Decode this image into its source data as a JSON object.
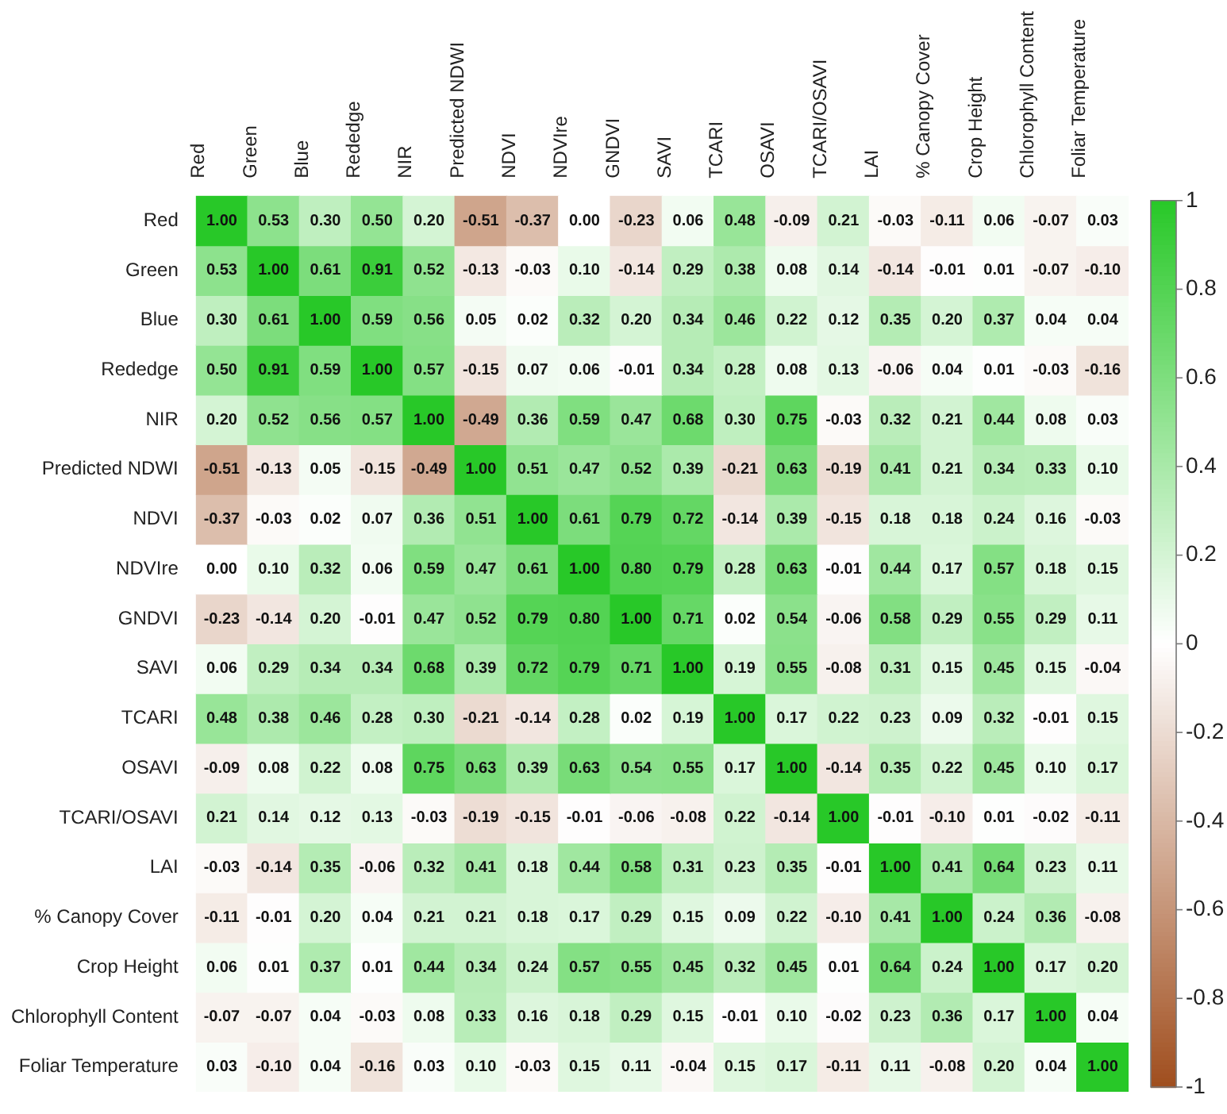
{
  "chart_data": {
    "type": "heatmap",
    "categories": [
      "Red",
      "Green",
      "Blue",
      "Rededge",
      "NIR",
      "Predicted NDWI",
      "NDVI",
      "NDVIre",
      "GNDVI",
      "SAVI",
      "TCARI",
      "OSAVI",
      "TCARI/OSAVI",
      "LAI",
      "% Canopy Cover",
      "Crop Height",
      "Chlorophyll Content",
      "Foliar Temperature"
    ],
    "y_categories": [
      "Red",
      "Green",
      "Blue",
      "Rededge",
      "NIR",
      "Predicted NDWI",
      "NDVI",
      "NDVIre",
      "GNDVI",
      "SAVI",
      "TCARI",
      "OSAVI",
      "TCARI/OSAVI",
      "LAI",
      "% Canopy Cover",
      "Crop Height",
      "Chlorophyll Content",
      "Foliar Temperature"
    ],
    "cells": [
      [
        1.0,
        0.53,
        0.3,
        0.5,
        0.2,
        -0.51,
        -0.37,
        0.0,
        -0.23,
        0.06,
        0.48,
        -0.09,
        0.21,
        -0.03,
        -0.11,
        0.06,
        -0.07,
        0.03
      ],
      [
        0.53,
        1.0,
        0.61,
        0.91,
        0.52,
        -0.13,
        -0.03,
        0.1,
        -0.14,
        0.29,
        0.38,
        0.08,
        0.14,
        -0.14,
        -0.01,
        0.01,
        -0.07,
        -0.1
      ],
      [
        0.3,
        0.61,
        1.0,
        0.59,
        0.56,
        0.05,
        0.02,
        0.32,
        0.2,
        0.34,
        0.46,
        0.22,
        0.12,
        0.35,
        0.2,
        0.37,
        0.04,
        0.04
      ],
      [
        0.5,
        0.91,
        0.59,
        1.0,
        0.57,
        -0.15,
        0.07,
        0.06,
        -0.01,
        0.34,
        0.28,
        0.08,
        0.13,
        -0.06,
        0.04,
        0.01,
        -0.03,
        -0.16
      ],
      [
        0.2,
        0.52,
        0.56,
        0.57,
        1.0,
        -0.49,
        0.36,
        0.59,
        0.47,
        0.68,
        0.3,
        0.75,
        -0.03,
        0.32,
        0.21,
        0.44,
        0.08,
        0.03
      ],
      [
        -0.51,
        -0.13,
        0.05,
        -0.15,
        -0.49,
        1.0,
        0.51,
        0.47,
        0.52,
        0.39,
        -0.21,
        0.63,
        -0.19,
        0.41,
        0.21,
        0.34,
        0.33,
        0.1
      ],
      [
        -0.37,
        -0.03,
        0.02,
        0.07,
        0.36,
        0.51,
        1.0,
        0.61,
        0.79,
        0.72,
        -0.14,
        0.39,
        -0.15,
        0.18,
        0.18,
        0.24,
        0.16,
        -0.03
      ],
      [
        0.0,
        0.1,
        0.32,
        0.06,
        0.59,
        0.47,
        0.61,
        1.0,
        0.8,
        0.79,
        0.28,
        0.63,
        -0.01,
        0.44,
        0.17,
        0.57,
        0.18,
        0.15
      ],
      [
        -0.23,
        -0.14,
        0.2,
        -0.01,
        0.47,
        0.52,
        0.79,
        0.8,
        1.0,
        0.71,
        0.02,
        0.54,
        -0.06,
        0.58,
        0.29,
        0.55,
        0.29,
        0.11
      ],
      [
        0.06,
        0.29,
        0.34,
        0.34,
        0.68,
        0.39,
        0.72,
        0.79,
        0.71,
        1.0,
        0.19,
        0.55,
        -0.08,
        0.31,
        0.15,
        0.45,
        0.15,
        -0.04
      ],
      [
        0.48,
        0.38,
        0.46,
        0.28,
        0.3,
        -0.21,
        -0.14,
        0.28,
        0.02,
        0.19,
        1.0,
        0.17,
        0.22,
        0.23,
        0.09,
        0.32,
        -0.01,
        0.15
      ],
      [
        -0.09,
        0.08,
        0.22,
        0.08,
        0.75,
        0.63,
        0.39,
        0.63,
        0.54,
        0.55,
        0.17,
        1.0,
        -0.14,
        0.35,
        0.22,
        0.45,
        0.1,
        0.17
      ],
      [
        0.21,
        0.14,
        0.12,
        0.13,
        -0.03,
        -0.19,
        -0.15,
        -0.01,
        -0.06,
        -0.08,
        0.22,
        -0.14,
        1.0,
        -0.01,
        -0.1,
        0.01,
        -0.02,
        -0.11
      ],
      [
        -0.03,
        -0.14,
        0.35,
        -0.06,
        0.32,
        0.41,
        0.18,
        0.44,
        0.58,
        0.31,
        0.23,
        0.35,
        -0.01,
        1.0,
        0.41,
        0.64,
        0.23,
        0.11
      ],
      [
        -0.11,
        -0.01,
        0.2,
        0.04,
        0.21,
        0.21,
        0.18,
        0.17,
        0.29,
        0.15,
        0.09,
        0.22,
        -0.1,
        0.41,
        1.0,
        0.24,
        0.36,
        -0.08
      ],
      [
        0.06,
        0.01,
        0.37,
        0.01,
        0.44,
        0.34,
        0.24,
        0.57,
        0.55,
        0.45,
        0.32,
        0.45,
        0.01,
        0.64,
        0.24,
        1.0,
        0.17,
        0.2
      ],
      [
        -0.07,
        -0.07,
        0.04,
        -0.03,
        0.08,
        0.33,
        0.16,
        0.18,
        0.29,
        0.15,
        -0.01,
        0.1,
        -0.02,
        0.23,
        0.36,
        0.17,
        1.0,
        0.04
      ],
      [
        0.03,
        -0.1,
        0.04,
        -0.16,
        0.03,
        0.1,
        -0.03,
        0.15,
        0.11,
        -0.04,
        0.15,
        0.17,
        -0.11,
        0.11,
        -0.08,
        0.2,
        0.04,
        1.0
      ]
    ],
    "cell_labels": [
      [
        "1.00",
        "0.53",
        "0.30",
        "0.50",
        "0.20",
        "-0.51",
        "-0.37",
        "0.00",
        "-0.23",
        "0.06",
        "0.48",
        "-0.09",
        "0.21",
        "-0.03",
        "-0.11",
        "0.06",
        "-0.07",
        "0.03"
      ],
      [
        "0.53",
        "1.00",
        "0.61",
        "0.91",
        "0.52",
        "-0.13",
        "-0.03",
        "0.10",
        "-0.14",
        "0.29",
        "0.38",
        "0.08",
        "0.14",
        "-0.14",
        "-0.01",
        "0.01",
        "-0.07",
        "-0.10"
      ],
      [
        "0.30",
        "0.61",
        "1.00",
        "0.59",
        "0.56",
        "0.05",
        "0.02",
        "0.32",
        "0.20",
        "0.34",
        "0.46",
        "0.22",
        "0.12",
        "0.35",
        "0.20",
        "0.37",
        "0.04",
        "0.04"
      ],
      [
        "0.50",
        "0.91",
        "0.59",
        "1.00",
        "0.57",
        "-0.15",
        "0.07",
        "0.06",
        "-0.01",
        "0.34",
        "0.28",
        "0.08",
        "0.13",
        "-0.06",
        "0.04",
        "0.01",
        "-0.03",
        "-0.16"
      ],
      [
        "0.20",
        "0.52",
        "0.56",
        "0.57",
        "1.00",
        "-0.49",
        "0.36",
        "0.59",
        "0.47",
        "0.68",
        "0.30",
        "0.75",
        "-0.03",
        "0.32",
        "0.21",
        "0.44",
        "0.08",
        "0.03"
      ],
      [
        "-0.51",
        "-0.13",
        "0.05",
        "-0.15",
        "-0.49",
        "1.00",
        "0.51",
        "0.47",
        "0.52",
        "0.39",
        "-0.21",
        "0.63",
        "-0.19",
        "0.41",
        "0.21",
        "0.34",
        "0.33",
        "0.10"
      ],
      [
        "-0.37",
        "-0.03",
        "0.02",
        "0.07",
        "0.36",
        "0.51",
        "1.00",
        "0.61",
        "0.79",
        "0.72",
        "-0.14",
        "0.39",
        "-0.15",
        "0.18",
        "0.18",
        "0.24",
        "0.16",
        "-0.03"
      ],
      [
        "0.00",
        "0.10",
        "0.32",
        "0.06",
        "0.59",
        "0.47",
        "0.61",
        "1.00",
        "0.80",
        "0.79",
        "0.28",
        "0.63",
        "-0.01",
        "0.44",
        "0.17",
        "0.57",
        "0.18",
        "0.15"
      ],
      [
        "-0.23",
        "-0.14",
        "0.20",
        "-0.01",
        "0.47",
        "0.52",
        "0.79",
        "0.80",
        "1.00",
        "0.71",
        "0.02",
        "0.54",
        "-0.06",
        "0.58",
        "0.29",
        "0.55",
        "0.29",
        "0.11"
      ],
      [
        "0.06",
        "0.29",
        "0.34",
        "0.34",
        "0.68",
        "0.39",
        "0.72",
        "0.79",
        "0.71",
        "1.00",
        "0.19",
        "0.55",
        "-0.08",
        "0.31",
        "0.15",
        "0.45",
        "0.15",
        "-0.04"
      ],
      [
        "0.48",
        "0.38",
        "0.46",
        "0.28",
        "0.30",
        "-0.21",
        "-0.14",
        "0.28",
        "0.02",
        "0.19",
        "1.00",
        "0.17",
        "0.22",
        "0.23",
        "0.09",
        "0.32",
        "-0.01",
        "0.15"
      ],
      [
        "-0.09",
        "0.08",
        "0.22",
        "0.08",
        "0.75",
        "0.63",
        "0.39",
        "0.63",
        "0.54",
        "0.55",
        "0.17",
        "1.00",
        "-0.14",
        "0.35",
        "0.22",
        "0.45",
        "0.10",
        "0.17"
      ],
      [
        "0.21",
        "0.14",
        "0.12",
        "0.13",
        "-0.03",
        "-0.19",
        "-0.15",
        "-0.01",
        "-0.06",
        "-0.08",
        "0.22",
        "-0.14",
        "1.00",
        "-0.01",
        "-0.10",
        "0.01",
        "-0.02",
        "-0.11"
      ],
      [
        "-0.03",
        "-0.14",
        "0.35",
        "-0.06",
        "0.32",
        "0.41",
        "0.18",
        "0.44",
        "0.58",
        "0.31",
        "0.23",
        "0.35",
        "-0.01",
        "1.00",
        "0.41",
        "0.64",
        "0.23",
        "0.11"
      ],
      [
        "-0.11",
        "-0.01",
        "0.20",
        "0.04",
        "0.21",
        "0.21",
        "0.18",
        "0.17",
        "0.29",
        "0.15",
        "0.09",
        "0.22",
        "-0.10",
        "0.41",
        "1.00",
        "0.24",
        "0.36",
        "-0.08"
      ],
      [
        "0.06",
        "0.01",
        "0.37",
        "0.01",
        "0.44",
        "0.34",
        "0.24",
        "0.57",
        "0.55",
        "0.45",
        "0.32",
        "0.45",
        "0.01",
        "0.64",
        "0.24",
        "1.00",
        "0.17",
        "0.20"
      ],
      [
        "-0.07",
        "-0.07",
        "0.04",
        "-0.03",
        "0.08",
        "0.33",
        "0.16",
        "0.18",
        "0.29",
        "0.15",
        "-0.01",
        "0.10",
        "-0.02",
        "0.23",
        "0.36",
        "0.17",
        "1.00",
        "0.04"
      ],
      [
        "0.03",
        "-0.10",
        "0.04",
        "-0.16",
        "0.03",
        "0.10",
        "-0.03",
        "0.15",
        "0.11",
        "-0.04",
        "0.15",
        "0.17",
        "-0.11",
        "0.11",
        "-0.08",
        "0.20",
        "0.04",
        "1.00"
      ]
    ],
    "clim": [
      -1,
      1
    ],
    "cticks": [
      {
        "value": -1,
        "label": "-1"
      },
      {
        "value": -0.8,
        "label": "-0.8"
      },
      {
        "value": -0.6,
        "label": "-0.6"
      },
      {
        "value": -0.4,
        "label": "-0.4"
      },
      {
        "value": -0.2,
        "label": "-0.2"
      },
      {
        "value": 0,
        "label": "0"
      },
      {
        "value": 0.2,
        "label": "0.2"
      },
      {
        "value": 0.4,
        "label": "0.4"
      },
      {
        "value": 0.6,
        "label": "0.6"
      },
      {
        "value": 0.8,
        "label": "0.8"
      },
      {
        "value": 1,
        "label": "1"
      }
    ]
  }
}
